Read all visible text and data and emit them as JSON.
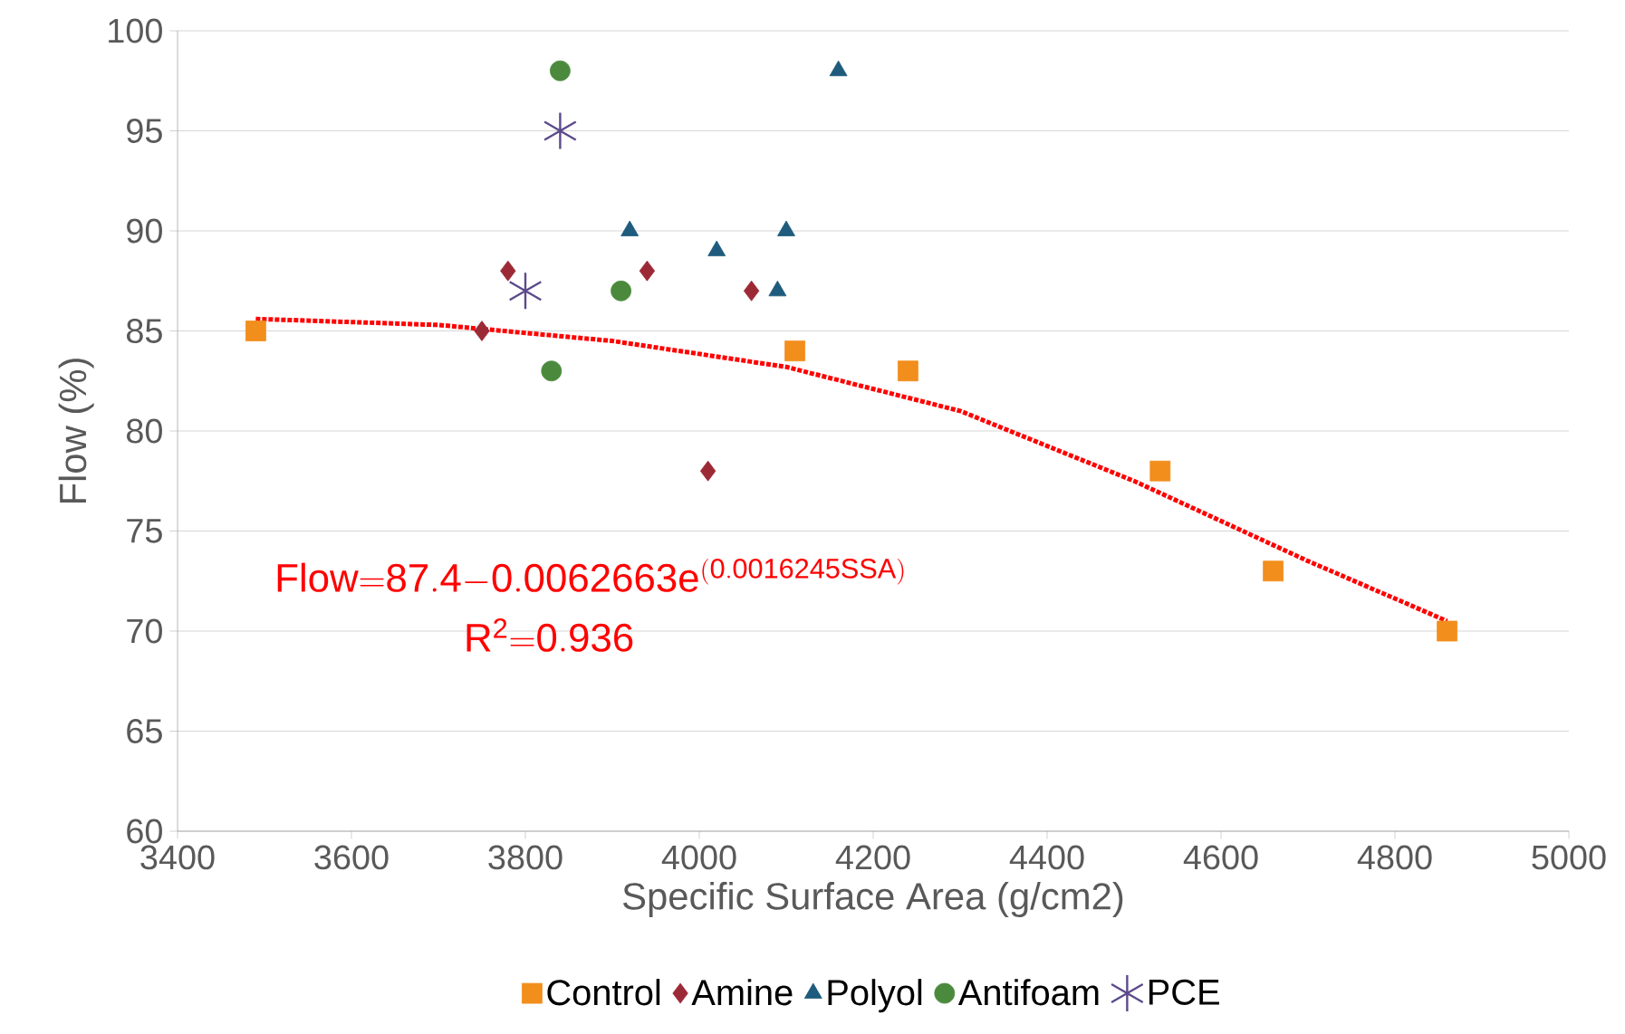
{
  "chart_data": {
    "type": "scatter",
    "xlabel": "Specific Surface Area (g/cm2)",
    "ylabel": "Flow (%)",
    "xlim": [
      3400,
      5000
    ],
    "xticks": [
      3400,
      3600,
      3800,
      4000,
      4200,
      4400,
      4600,
      4800,
      5000
    ],
    "ylim": [
      60,
      100
    ],
    "yticks": [
      60,
      65,
      70,
      75,
      80,
      85,
      90,
      95,
      100
    ],
    "grid": "y",
    "legend": "bottom",
    "series": [
      {
        "name": "Control",
        "color": "#f28e1c",
        "marker": "square",
        "x": [
          3490,
          4110,
          4240,
          4530,
          4660,
          4860
        ],
        "values": [
          85,
          84,
          83,
          78,
          73,
          70
        ]
      },
      {
        "name": "Amine",
        "color": "#9c2a36",
        "marker": "diamond",
        "x": [
          3750,
          3780,
          3940,
          4060,
          4010
        ],
        "values": [
          85,
          88,
          88,
          87,
          78
        ]
      },
      {
        "name": "Polyol",
        "color": "#1e5b7c",
        "marker": "triangle",
        "x": [
          3920,
          4020,
          4090,
          4100,
          4160
        ],
        "values": [
          90,
          89,
          87,
          90,
          98
        ]
      },
      {
        "name": "Antifoam",
        "color": "#4b8a3d",
        "marker": "circle",
        "x": [
          3840,
          3910,
          3830
        ],
        "values": [
          98,
          87,
          83
        ]
      },
      {
        "name": "PCE",
        "color": "#5c4a8c",
        "marker": "cross",
        "x": [
          3840,
          3800
        ],
        "values": [
          95,
          87
        ]
      },
      {
        "type": "line",
        "color": "#ff0000",
        "line_style": "dotted",
        "marker": "none",
        "x": [
          3490,
          3700,
          3900,
          4100,
          4300,
          4500,
          4700,
          4860
        ],
        "values": [
          85.6,
          85.3,
          84.5,
          83.2,
          81.0,
          77.5,
          73.5,
          70.5
        ]
      }
    ],
    "annotations": [
      "\\mathrm{Flow{=}87.4{-}0.0062663e^{(0.0016245SSA)}}",
      "\\mathrm{R^{2}{=}0.936}"
    ]
  }
}
